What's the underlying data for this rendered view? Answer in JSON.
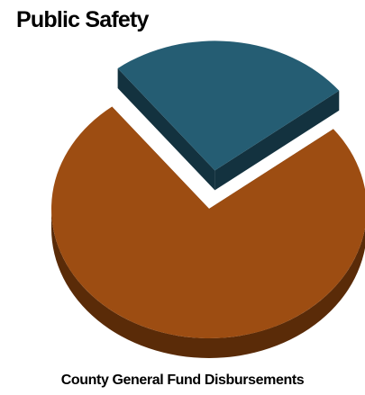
{
  "chart_data": {
    "type": "pie",
    "title": "Public Safety",
    "caption": "County General Fund Disbursements",
    "slices": [
      {
        "share": 0.25,
        "color": "#255d73",
        "side_color": "#13323f",
        "exploded": true
      },
      {
        "share": 0.75,
        "color": "#9d4d12",
        "side_color": "#5a2b08",
        "exploded": false
      }
    ],
    "legend": "none"
  }
}
